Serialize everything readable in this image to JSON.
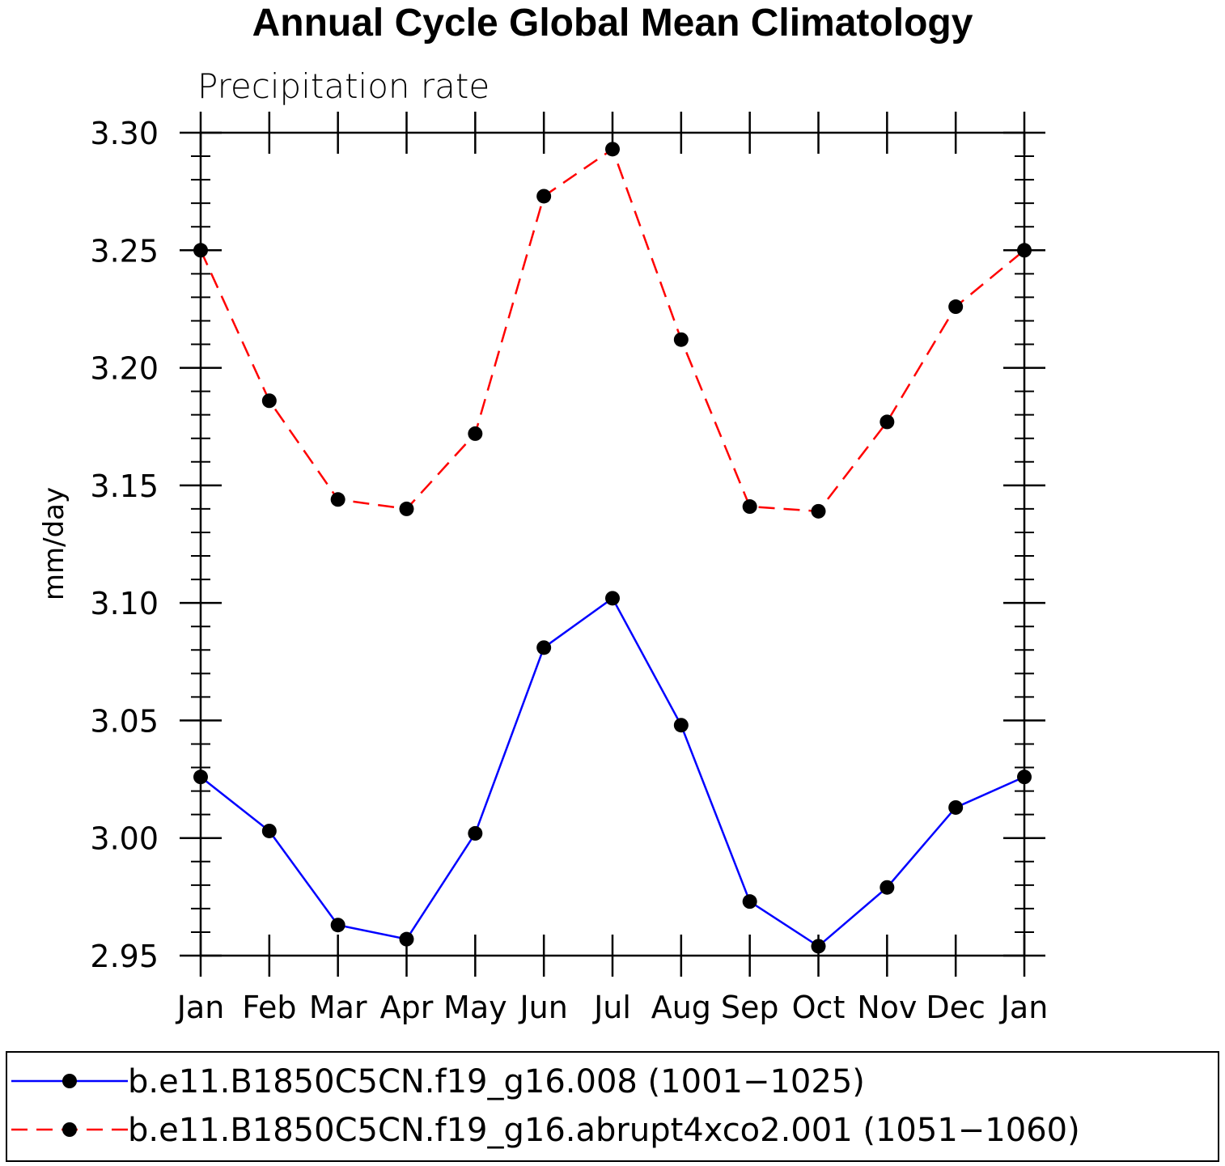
{
  "chart_data": {
    "type": "line",
    "title": "Annual Cycle Global Mean Climatology",
    "subtitle": "Precipitation rate",
    "xlabel": "",
    "ylabel": "mm/day",
    "categories": [
      "Jan",
      "Feb",
      "Mar",
      "Apr",
      "May",
      "Jun",
      "Jul",
      "Aug",
      "Sep",
      "Oct",
      "Nov",
      "Dec",
      "Jan"
    ],
    "ylim": [
      2.95,
      3.3
    ],
    "yticks": [
      "3.30",
      "3.25",
      "3.20",
      "3.15",
      "3.10",
      "3.05",
      "3.00",
      "2.95"
    ],
    "ytick_values": [
      3.3,
      3.25,
      3.2,
      3.15,
      3.1,
      3.05,
      3.0,
      2.95
    ],
    "series": [
      {
        "name": "b.e11.B1850C5CN.f19_g16.008 (1001−1025)",
        "color": "#0000ff",
        "style": "solid",
        "values": [
          3.026,
          3.003,
          2.963,
          2.957,
          3.002,
          3.081,
          3.102,
          3.048,
          2.973,
          2.954,
          2.979,
          3.013,
          3.026
        ]
      },
      {
        "name": "b.e11.B1850C5CN.f19_g16.abrupt4xco2.001 (1051−1060)",
        "color": "#ff0000",
        "style": "dashed",
        "values": [
          3.25,
          3.186,
          3.144,
          3.14,
          3.172,
          3.273,
          3.293,
          3.212,
          3.141,
          3.139,
          3.177,
          3.226,
          3.25
        ]
      }
    ],
    "legend_position": "bottom"
  }
}
